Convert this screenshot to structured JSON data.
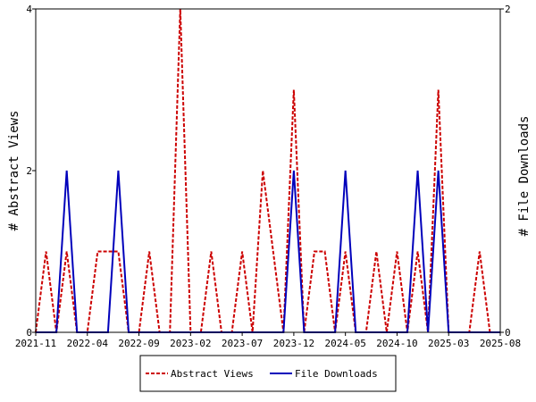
{
  "chart_data": {
    "type": "line",
    "title": "",
    "x_tick_labels": [
      "2021-11",
      "2022-04",
      "2022-09",
      "2023-02",
      "2023-07",
      "2023-12",
      "2024-05",
      "2024-10",
      "2025-03",
      "2025-08"
    ],
    "ylabel_left": "# Abstract Views",
    "ylabel_right": "# File Downloads",
    "ylim_left": [
      0,
      4
    ],
    "ylim_right": [
      0,
      2
    ],
    "yticks_left": [
      "0",
      "2",
      "4"
    ],
    "yticks_right": [
      "0",
      "2"
    ],
    "grid": false,
    "legend_position": "bottom-center",
    "x_months": [
      "2021-11",
      "2021-12",
      "2022-01",
      "2022-02",
      "2022-03",
      "2022-04",
      "2022-05",
      "2022-06",
      "2022-07",
      "2022-08",
      "2022-09",
      "2022-10",
      "2022-11",
      "2022-12",
      "2023-01",
      "2023-02",
      "2023-03",
      "2023-04",
      "2023-05",
      "2023-06",
      "2023-07",
      "2023-08",
      "2023-09",
      "2023-10",
      "2023-11",
      "2023-12",
      "2024-01",
      "2024-02",
      "2024-03",
      "2024-04",
      "2024-05",
      "2024-06",
      "2024-07",
      "2024-08",
      "2024-09",
      "2024-10",
      "2024-11",
      "2024-12",
      "2025-01",
      "2025-02",
      "2025-03",
      "2025-04",
      "2025-05",
      "2025-06",
      "2025-07",
      "2025-08"
    ],
    "series": [
      {
        "name": "Abstract Views",
        "axis": "left",
        "color": "#cc0000",
        "dash": true,
        "values": [
          0,
          1,
          0,
          1,
          0,
          0,
          1,
          1,
          1,
          0,
          0,
          1,
          0,
          0,
          4,
          0,
          0,
          1,
          0,
          0,
          1,
          0,
          2,
          1,
          0,
          3,
          0,
          1,
          1,
          0,
          1,
          0,
          0,
          1,
          0,
          1,
          0,
          1,
          0,
          3,
          0,
          0,
          0,
          1,
          0,
          0
        ]
      },
      {
        "name": "File Downloads",
        "axis": "right",
        "color": "#0000bb",
        "dash": false,
        "values": [
          0,
          0,
          0,
          1,
          0,
          0,
          0,
          0,
          1,
          0,
          0,
          0,
          0,
          0,
          0,
          0,
          0,
          0,
          0,
          0,
          0,
          0,
          0,
          0,
          0,
          1,
          0,
          0,
          0,
          0,
          1,
          0,
          0,
          0,
          0,
          0,
          0,
          1,
          0,
          1,
          0,
          0,
          0,
          0,
          0,
          0
        ]
      }
    ]
  }
}
